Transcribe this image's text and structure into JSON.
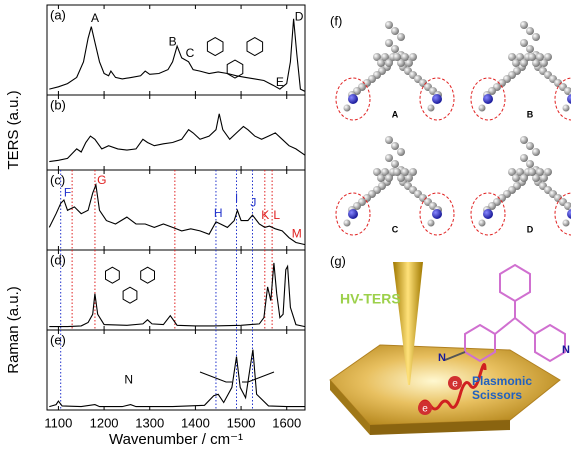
{
  "chart_data": [
    {
      "type": "line",
      "label": "(a)",
      "color": "#000",
      "xlim": [
        1075,
        1640
      ],
      "ylim": [
        0,
        1.05
      ],
      "ylabel": "TERS (a.u.)",
      "x": [
        1080,
        1100,
        1120,
        1140,
        1155,
        1165,
        1172,
        1180,
        1190,
        1200,
        1210,
        1215,
        1225,
        1240,
        1260,
        1280,
        1290,
        1300,
        1320,
        1340,
        1350,
        1360,
        1370,
        1385,
        1395,
        1410,
        1430,
        1450,
        1470,
        1490,
        1510,
        1530,
        1550,
        1570,
        1585,
        1600,
        1608,
        1615,
        1622,
        1630,
        1640
      ],
      "values": [
        0.05,
        0.08,
        0.12,
        0.2,
        0.4,
        0.7,
        0.85,
        0.65,
        0.4,
        0.25,
        0.22,
        0.28,
        0.2,
        0.18,
        0.2,
        0.22,
        0.28,
        0.24,
        0.25,
        0.3,
        0.4,
        0.6,
        0.45,
        0.4,
        0.3,
        0.28,
        0.25,
        0.27,
        0.25,
        0.22,
        0.2,
        0.18,
        0.16,
        0.1,
        0.05,
        0.12,
        0.4,
        0.95,
        0.5,
        0.05,
        0.02
      ],
      "annotations": [
        {
          "text": "A",
          "x": 1180,
          "y": 0.95,
          "color": "#000"
        },
        {
          "text": "B",
          "x": 1350,
          "y": 0.65,
          "color": "#000"
        },
        {
          "text": "C",
          "x": 1388,
          "y": 0.5,
          "color": "#000"
        },
        {
          "text": "D",
          "x": 1627,
          "y": 0.97,
          "color": "#000"
        },
        {
          "text": "E",
          "x": 1585,
          "y": 0.13,
          "color": "#000"
        }
      ]
    },
    {
      "type": "line",
      "label": "(b)",
      "color": "#000",
      "xlim": [
        1075,
        1640
      ],
      "ylim": [
        0,
        1.05
      ],
      "x": [
        1080,
        1100,
        1120,
        1140,
        1150,
        1160,
        1170,
        1180,
        1195,
        1210,
        1230,
        1250,
        1270,
        1285,
        1295,
        1310,
        1330,
        1350,
        1370,
        1385,
        1395,
        1410,
        1430,
        1445,
        1452,
        1460,
        1475,
        1490,
        1505,
        1515,
        1530,
        1545,
        1560,
        1575,
        1590,
        1605,
        1620,
        1640
      ],
      "values": [
        0.1,
        0.12,
        0.15,
        0.3,
        0.25,
        0.4,
        0.5,
        0.45,
        0.3,
        0.35,
        0.3,
        0.28,
        0.3,
        0.45,
        0.4,
        0.35,
        0.38,
        0.4,
        0.45,
        0.6,
        0.55,
        0.45,
        0.5,
        0.6,
        0.85,
        0.6,
        0.45,
        0.55,
        0.65,
        0.6,
        0.5,
        0.45,
        0.5,
        0.55,
        0.45,
        0.35,
        0.3,
        0.2
      ]
    },
    {
      "type": "line",
      "label": "(c)",
      "color": "#000",
      "xlim": [
        1075,
        1640
      ],
      "ylim": [
        0,
        1.05
      ],
      "x": [
        1080,
        1095,
        1105,
        1112,
        1120,
        1135,
        1150,
        1165,
        1175,
        1182,
        1190,
        1205,
        1225,
        1250,
        1270,
        1290,
        1310,
        1330,
        1350,
        1370,
        1390,
        1410,
        1430,
        1445,
        1455,
        1470,
        1485,
        1492,
        1500,
        1515,
        1525,
        1540,
        1552,
        1562,
        1575,
        1590,
        1605,
        1620,
        1640
      ],
      "values": [
        0.3,
        0.5,
        0.65,
        0.7,
        0.55,
        0.6,
        0.5,
        0.55,
        0.8,
        0.92,
        0.55,
        0.4,
        0.35,
        0.45,
        0.35,
        0.35,
        0.3,
        0.35,
        0.3,
        0.25,
        0.28,
        0.25,
        0.2,
        0.38,
        0.35,
        0.3,
        0.4,
        0.55,
        0.4,
        0.4,
        0.48,
        0.35,
        0.3,
        0.32,
        0.28,
        0.25,
        0.15,
        0.08,
        0.05
      ],
      "annotations": [
        {
          "text": "F",
          "x": 1120,
          "y": 0.8,
          "color": "#2233cc"
        },
        {
          "text": "G",
          "x": 1195,
          "y": 0.98,
          "color": "#e02020"
        },
        {
          "text": "H",
          "x": 1450,
          "y": 0.5,
          "color": "#2233cc"
        },
        {
          "text": "I",
          "x": 1490,
          "y": 0.72,
          "color": "#2233cc"
        },
        {
          "text": "J",
          "x": 1527,
          "y": 0.65,
          "color": "#2233cc"
        },
        {
          "text": "K",
          "x": 1553,
          "y": 0.47,
          "color": "#e02020"
        },
        {
          "text": "L",
          "x": 1578,
          "y": 0.47,
          "color": "#e02020"
        },
        {
          "text": "M",
          "x": 1622,
          "y": 0.2,
          "color": "#e02020"
        }
      ],
      "markers": [
        {
          "x": 1105,
          "color": "#2233cc"
        },
        {
          "x": 1130,
          "color": "#e02020"
        },
        {
          "x": 1180,
          "color": "#e02020"
        },
        {
          "x": 1355,
          "color": "#e02020"
        },
        {
          "x": 1445,
          "color": "#2233cc"
        },
        {
          "x": 1490,
          "color": "#2233cc"
        },
        {
          "x": 1525,
          "color": "#2233cc"
        },
        {
          "x": 1552,
          "color": "#e02020"
        },
        {
          "x": 1568,
          "color": "#e02020"
        }
      ]
    },
    {
      "type": "line",
      "label": "(d)",
      "color": "#000",
      "xlim": [
        1075,
        1640
      ],
      "ylim": [
        0,
        1.05
      ],
      "ylabel": "Raman (a.u.)",
      "x": [
        1080,
        1120,
        1150,
        1165,
        1175,
        1180,
        1186,
        1200,
        1250,
        1285,
        1295,
        1305,
        1330,
        1345,
        1360,
        1400,
        1440,
        1500,
        1540,
        1550,
        1558,
        1565,
        1572,
        1578,
        1585,
        1592,
        1598,
        1602,
        1608,
        1620,
        1640
      ],
      "values": [
        0.02,
        0.02,
        0.03,
        0.08,
        0.2,
        0.5,
        0.2,
        0.05,
        0.04,
        0.06,
        0.12,
        0.06,
        0.05,
        0.18,
        0.04,
        0.03,
        0.03,
        0.04,
        0.06,
        0.15,
        0.6,
        0.4,
        0.95,
        0.5,
        0.15,
        0.2,
        0.85,
        0.9,
        0.3,
        0.05,
        0.02
      ],
      "markers": [
        {
          "x": 1105,
          "color": "#2233cc"
        },
        {
          "x": 1130,
          "color": "#e02020"
        },
        {
          "x": 1180,
          "color": "#e02020"
        },
        {
          "x": 1355,
          "color": "#e02020"
        },
        {
          "x": 1445,
          "color": "#2233cc"
        },
        {
          "x": 1490,
          "color": "#2233cc"
        },
        {
          "x": 1525,
          "color": "#2233cc"
        },
        {
          "x": 1552,
          "color": "#e02020"
        },
        {
          "x": 1568,
          "color": "#e02020"
        }
      ]
    },
    {
      "type": "line",
      "label": "(e)",
      "color": "#000",
      "xlim": [
        1075,
        1640
      ],
      "ylim": [
        0,
        1.05
      ],
      "xlabel": "Wavenumber / cm⁻¹",
      "xticks": [
        1100,
        1200,
        1300,
        1400,
        1500,
        1600
      ],
      "x": [
        1080,
        1095,
        1100,
        1108,
        1150,
        1180,
        1190,
        1240,
        1258,
        1270,
        1350,
        1420,
        1440,
        1450,
        1462,
        1480,
        1490,
        1498,
        1510,
        1520,
        1526,
        1534,
        1560,
        1600,
        1640
      ],
      "values": [
        0.02,
        0.05,
        0.1,
        0.03,
        0.02,
        0.05,
        0.02,
        0.02,
        0.05,
        0.02,
        0.02,
        0.04,
        0.18,
        0.2,
        0.08,
        0.3,
        0.75,
        0.3,
        0.15,
        0.6,
        0.85,
        0.2,
        0.03,
        0.02,
        0.02
      ],
      "annotations": [
        {
          "text": "N",
          "x": 1254,
          "y": 0.4,
          "color": "#000"
        }
      ],
      "markers": [
        {
          "x": 1105,
          "color": "#2233cc"
        },
        {
          "x": 1445,
          "color": "#2233cc"
        },
        {
          "x": 1490,
          "color": "#2233cc"
        },
        {
          "x": 1525,
          "color": "#2233cc"
        }
      ]
    }
  ],
  "figure_f": {
    "label": "(f)",
    "panels": [
      "A",
      "B",
      "C",
      "D"
    ]
  },
  "figure_g": {
    "label": "(g)",
    "tip_label": "HV-TERS",
    "scissors_label": "Plasmonic Scissors",
    "electrons": [
      "e",
      "e"
    ],
    "amines": [
      "N",
      "N"
    ]
  }
}
